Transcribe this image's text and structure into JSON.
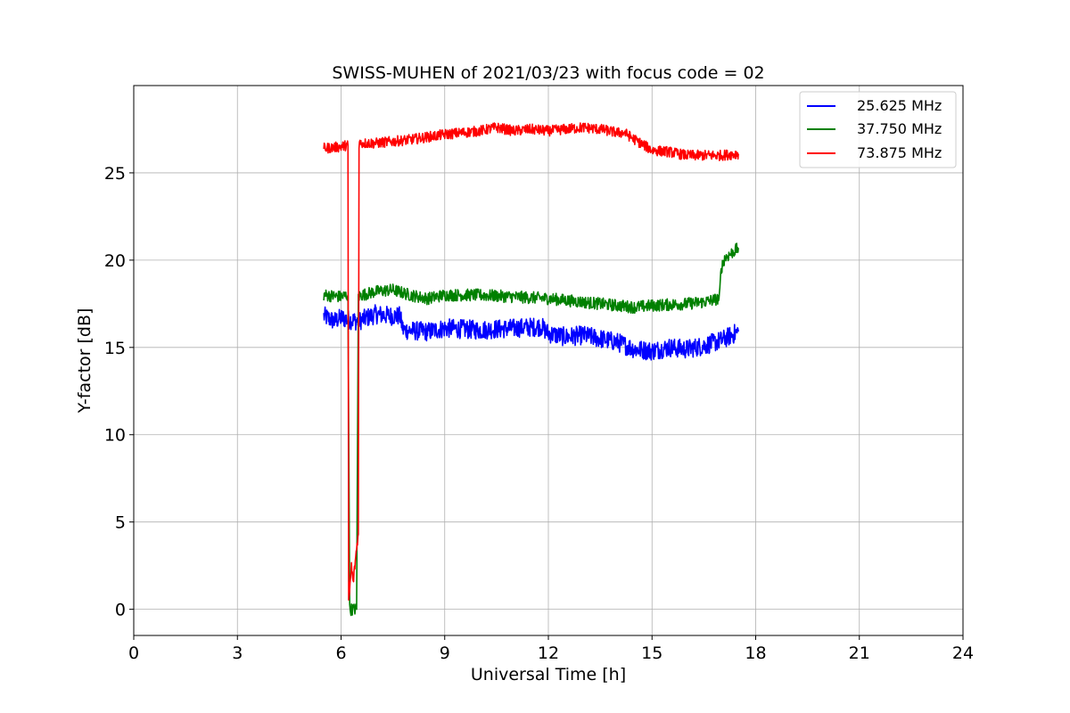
{
  "chart_data": {
    "type": "line",
    "title": "SWISS-MUHEN of 2021/03/23 with focus code = 02",
    "xlabel": "Universal Time [h]",
    "ylabel": "Y-factor [dB]",
    "xlim": [
      0,
      24
    ],
    "ylim": [
      -1.5,
      30
    ],
    "xticks": [
      0,
      3,
      6,
      9,
      12,
      15,
      18,
      21,
      24
    ],
    "yticks": [
      0,
      5,
      10,
      15,
      20,
      25
    ],
    "grid": true,
    "legend_position": "upper right",
    "series": [
      {
        "name": "25.625 MHz",
        "color": "#0000ff",
        "noise": 0.55,
        "x": [
          5.5,
          5.8,
          6.0,
          6.2,
          6.5,
          7.0,
          7.5,
          7.7,
          7.8,
          8.5,
          9.0,
          10.0,
          11.0,
          11.8,
          12.0,
          12.5,
          13.0,
          13.5,
          14.0,
          14.5,
          15.0,
          15.5,
          16.0,
          16.5,
          17.0,
          17.5
        ],
        "y": [
          16.8,
          16.5,
          16.7,
          16.6,
          16.5,
          16.9,
          16.8,
          16.8,
          16.0,
          15.9,
          16.1,
          16.0,
          16.1,
          16.2,
          15.8,
          15.6,
          15.7,
          15.5,
          15.3,
          14.9,
          14.8,
          15.0,
          14.9,
          15.1,
          15.4,
          15.9
        ]
      },
      {
        "name": "37.750 MHz",
        "color": "#008000",
        "noise": 0.35,
        "x": [
          5.5,
          6.0,
          6.2,
          6.25,
          6.3,
          6.45,
          6.5,
          6.6,
          7.0,
          7.5,
          8.0,
          8.5,
          9.0,
          10.0,
          11.0,
          12.0,
          13.0,
          14.0,
          14.5,
          15.0,
          16.0,
          16.5,
          16.95,
          17.0,
          17.1,
          17.3,
          17.5
        ],
        "y": [
          18.0,
          17.9,
          18.0,
          0.0,
          0.0,
          0.0,
          17.9,
          18.0,
          18.2,
          18.3,
          18.0,
          17.8,
          18.0,
          18.0,
          17.9,
          17.8,
          17.6,
          17.4,
          17.3,
          17.4,
          17.5,
          17.6,
          17.8,
          19.5,
          20.1,
          20.4,
          20.7
        ]
      },
      {
        "name": "73.875 MHz",
        "color": "#ff0000",
        "noise": 0.3,
        "x": [
          5.5,
          6.0,
          6.2,
          6.22,
          6.3,
          6.35,
          6.45,
          6.5,
          6.52,
          6.6,
          7.0,
          8.0,
          9.0,
          9.5,
          10.0,
          10.5,
          11.0,
          11.5,
          12.0,
          12.5,
          13.0,
          13.5,
          14.0,
          14.2,
          14.5,
          15.0,
          15.5,
          16.0,
          16.5,
          17.0,
          17.5
        ],
        "y": [
          26.4,
          26.5,
          26.6,
          0.3,
          2.5,
          1.5,
          3.5,
          4.3,
          26.7,
          26.7,
          26.7,
          26.9,
          27.2,
          27.3,
          27.4,
          27.6,
          27.4,
          27.5,
          27.4,
          27.5,
          27.6,
          27.5,
          27.3,
          27.3,
          26.9,
          26.3,
          26.2,
          26.0,
          26.0,
          26.0,
          26.1
        ]
      }
    ]
  }
}
